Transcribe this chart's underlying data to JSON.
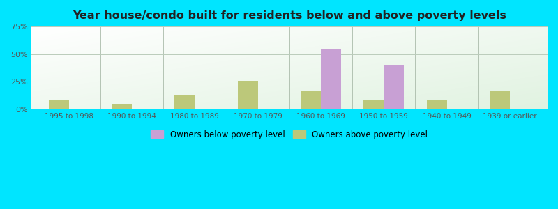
{
  "title": "Year house/condo built for residents below and above poverty levels",
  "categories": [
    "1995 to 1998",
    "1990 to 1994",
    "1980 to 1989",
    "1970 to 1979",
    "1960 to 1969",
    "1950 to 1959",
    "1940 to 1949",
    "1939 or earlier"
  ],
  "below_poverty": [
    0,
    0,
    0,
    0,
    55,
    40,
    0,
    0
  ],
  "above_poverty": [
    8,
    5,
    13,
    26,
    17,
    8,
    8,
    17
  ],
  "below_color": "#c8a0d4",
  "above_color": "#bcc87a",
  "ylim": [
    0,
    75
  ],
  "yticks": [
    0,
    25,
    50,
    75
  ],
  "ytick_labels": [
    "0%",
    "25%",
    "50%",
    "75%"
  ],
  "outer_bg": "#00e5ff",
  "bar_width": 0.32,
  "legend_below_label": "Owners below poverty level",
  "legend_above_label": "Owners above poverty level",
  "bg_left_color": "#d4e8d0",
  "bg_right_color": "#f0f8f0"
}
